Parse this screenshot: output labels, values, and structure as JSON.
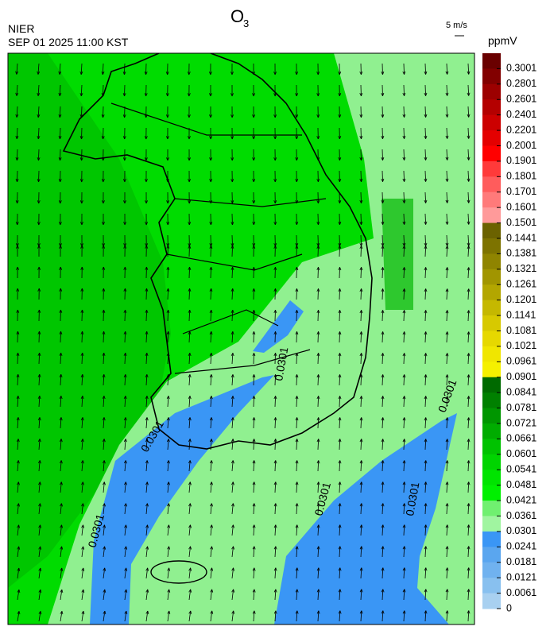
{
  "header": {
    "title": "O",
    "title_sub": "3",
    "source": "NIER",
    "datetime": "SEP 01 2025 11:00 KST",
    "wind_scale": "5 m/s"
  },
  "colorbar": {
    "unit": "ppmV",
    "labels": [
      "0.3001",
      "0.2801",
      "0.2601",
      "0.2401",
      "0.2201",
      "0.2001",
      "0.1901",
      "0.1801",
      "0.1701",
      "0.1601",
      "0.1501",
      "0.1441",
      "0.1381",
      "0.1321",
      "0.1261",
      "0.1201",
      "0.1141",
      "0.1081",
      "0.1021",
      "0.0961",
      "0.0901",
      "0.0841",
      "0.0781",
      "0.0721",
      "0.0661",
      "0.0601",
      "0.0541",
      "0.0481",
      "0.0421",
      "0.0361",
      "0.0301",
      "0.0241",
      "0.0181",
      "0.0121",
      "0.0061",
      "0"
    ],
    "colors": [
      "#6a0000",
      "#820000",
      "#9c0000",
      "#b40000",
      "#cc0000",
      "#e40000",
      "#ff0000",
      "#ff3a3a",
      "#ff5c5c",
      "#ff7a7a",
      "#ff9a9a",
      "#6b6200",
      "#7d7300",
      "#8f8400",
      "#a19500",
      "#b3a600",
      "#c5b800",
      "#d7c900",
      "#e6d800",
      "#f0e600",
      "#f5f000",
      "#006a00",
      "#008000",
      "#009600",
      "#00ac00",
      "#00c200",
      "#00d400",
      "#00e400",
      "#00f000",
      "#70f070",
      "#a0f5a0",
      "#3a96f5",
      "#5aa6ef",
      "#70b2ef",
      "#88c0ef",
      "#a8d0f0"
    ]
  },
  "contour_labels": [
    "0.0301",
    "0.0301",
    "0.0301",
    "0.0301",
    "0.0301",
    "0.0301"
  ]
}
